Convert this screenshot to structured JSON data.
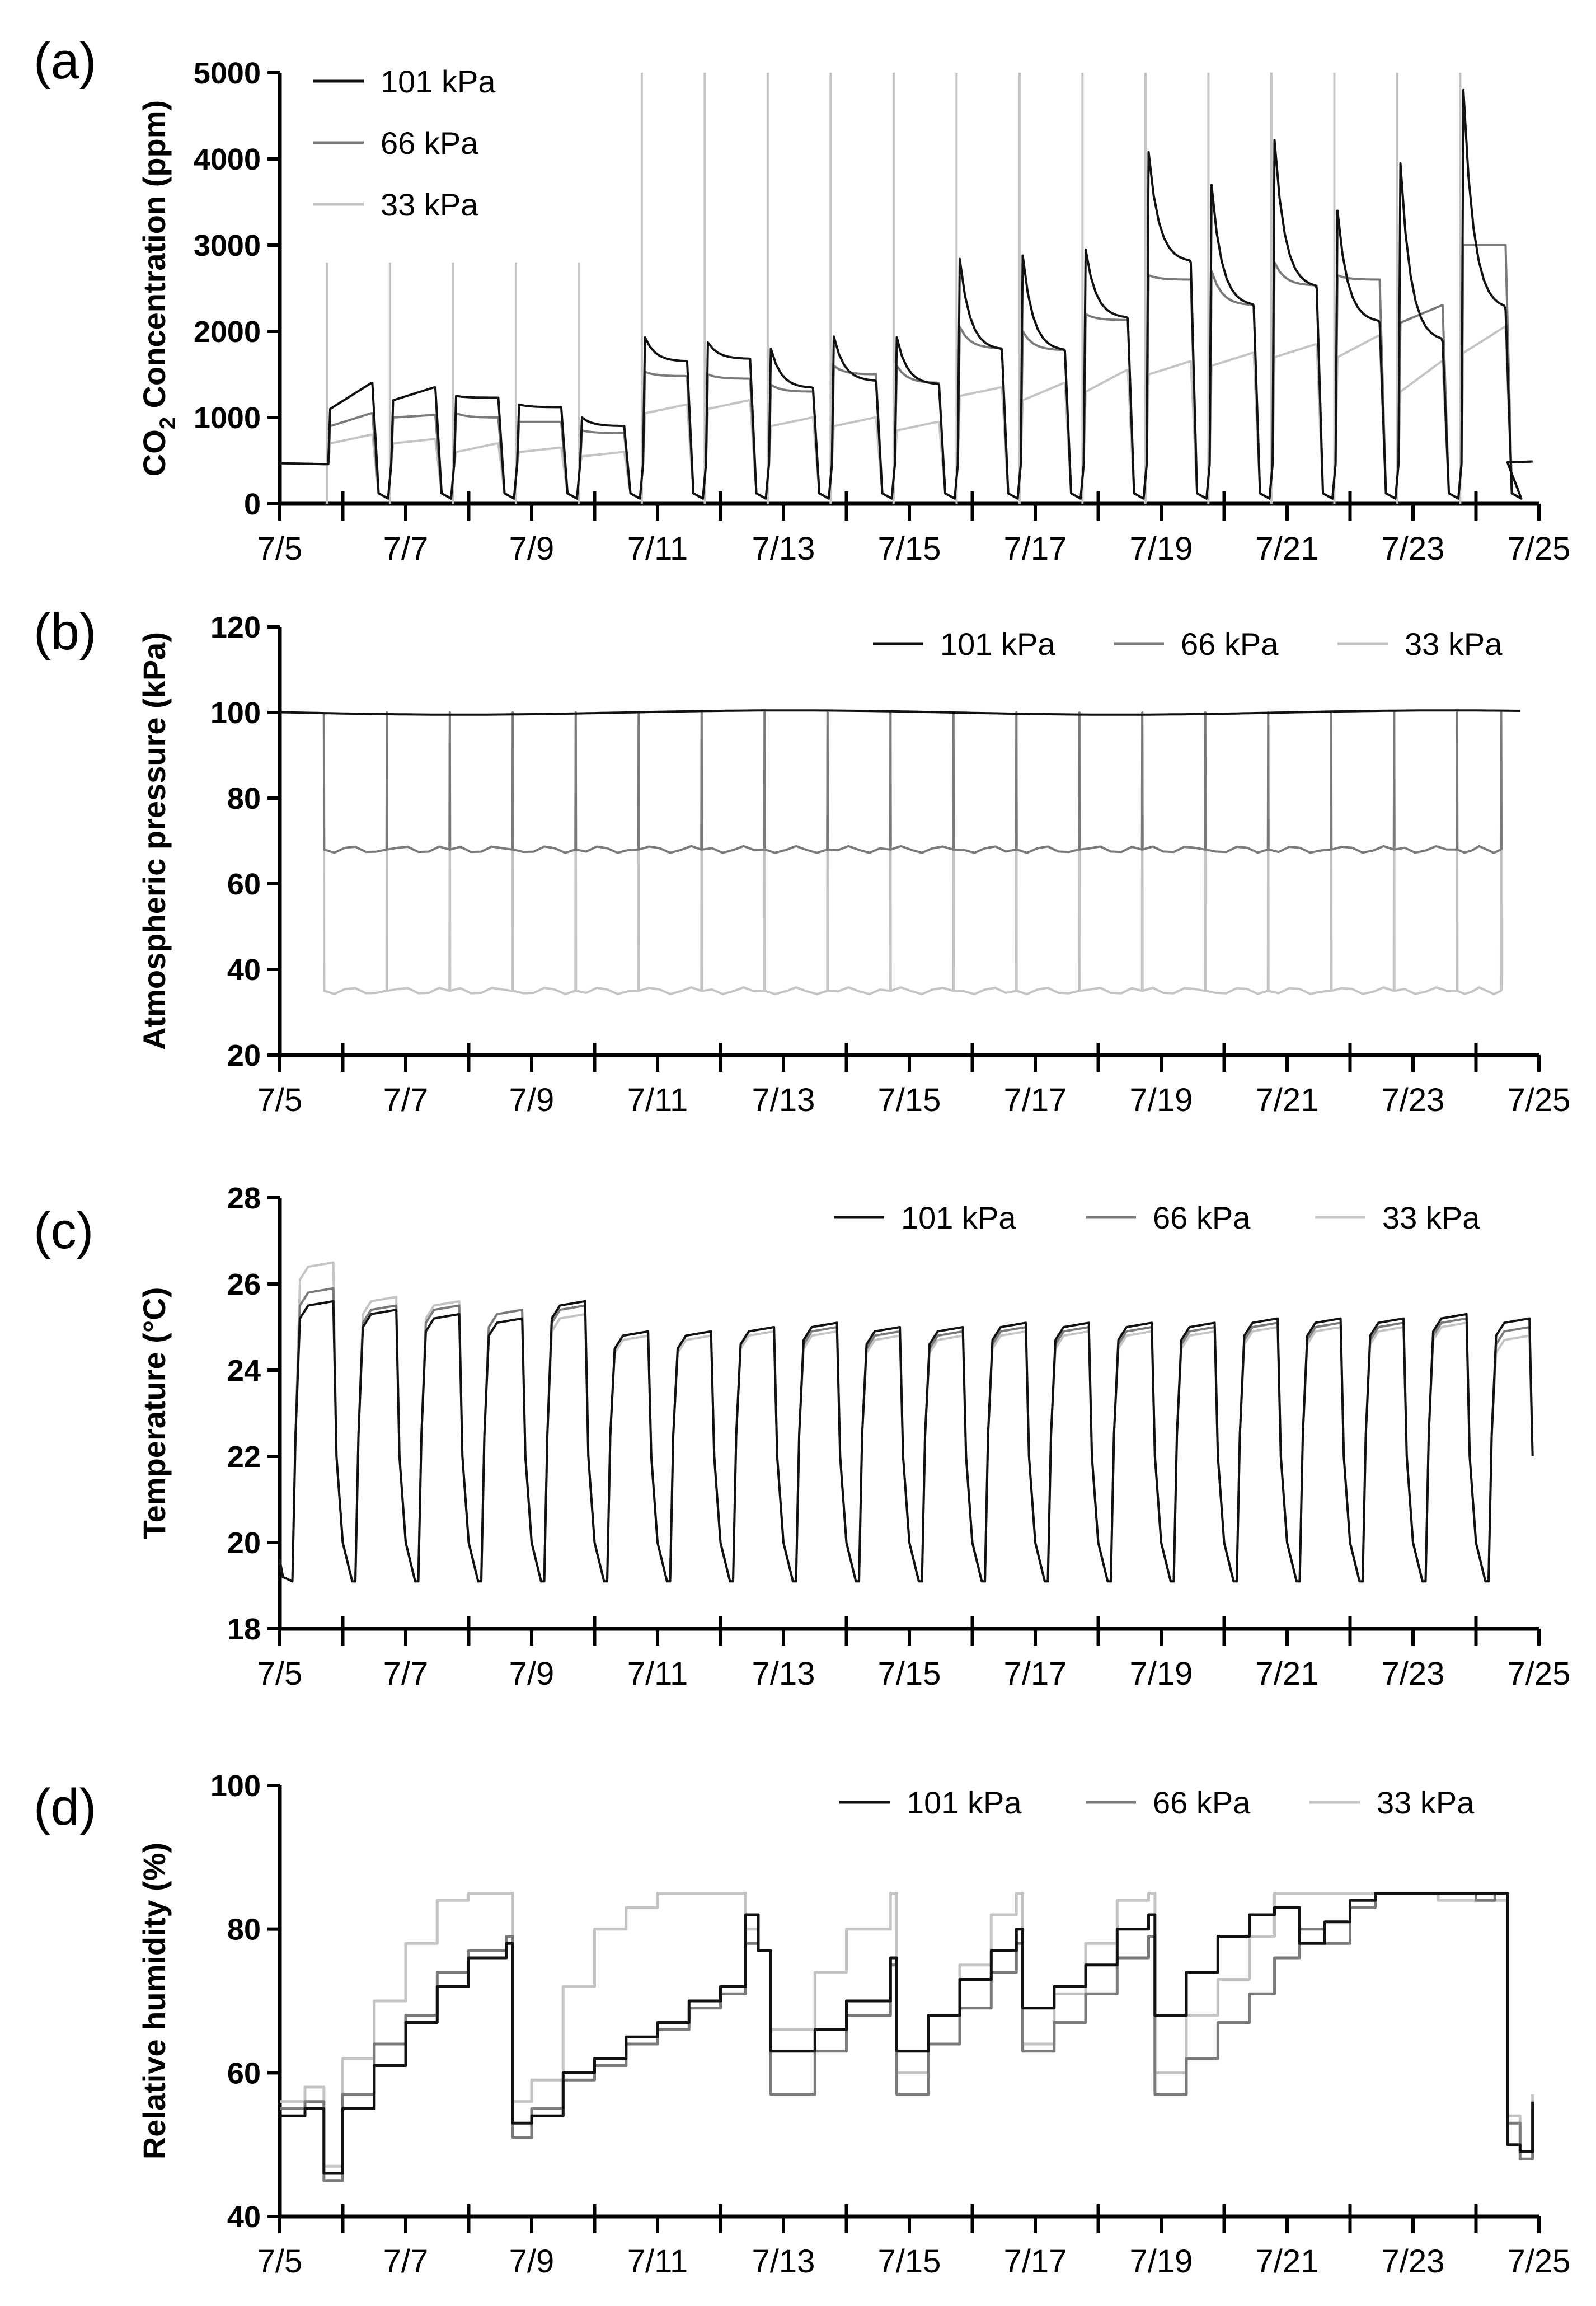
{
  "figure": {
    "x_tick_labels": [
      "7/5",
      "7/7",
      "7/9",
      "7/11",
      "7/13",
      "7/15",
      "7/17",
      "7/19",
      "7/21",
      "7/23",
      "7/25"
    ]
  },
  "series_colors": {
    "101 kPa": "#111111",
    "66 kPa": "#7a7a7a",
    "33 kPa": "#c4c4c4"
  },
  "chart_data": [
    {
      "type": "line",
      "panel_label": "(a)",
      "title": "",
      "xlabel": "",
      "ylabel": "CO2 Concentration (ppm)",
      "ylabel_main": "CO",
      "ylabel_sub": "2",
      "ylabel_rest": " Concentration (ppm)",
      "xlim": [
        5,
        25
      ],
      "ylim": [
        0,
        5000
      ],
      "yticks": [
        0,
        1000,
        2000,
        3000,
        4000,
        5000
      ],
      "x_tick_labels": [
        "7/5",
        "7/7",
        "7/9",
        "7/11",
        "7/13",
        "7/15",
        "7/17",
        "7/19",
        "7/21",
        "7/23",
        "7/25"
      ],
      "legend_position": "top-left",
      "legend": [
        "101 kPa",
        "66 kPa",
        "33 kPa"
      ],
      "spike_days": [
        5.75,
        6.75,
        7.75,
        8.75,
        9.75,
        10.75,
        11.75,
        12.75,
        13.75,
        14.75,
        15.75,
        16.75,
        17.75,
        18.75,
        19.75,
        20.75,
        21.75,
        22.75,
        23.75
      ],
      "spike_heights": [
        2800,
        2800,
        2800,
        2800,
        2800,
        5000,
        5000,
        5000,
        5000,
        5000,
        5000,
        5000,
        5000,
        5000,
        5000,
        5000,
        5000,
        5000,
        5000
      ],
      "series": [
        {
          "name": "101 kPa",
          "peak_values": [
            1100,
            1200,
            1250,
            1150,
            1000,
            1930,
            1870,
            1800,
            1940,
            1930,
            2840,
            2880,
            2950,
            4080,
            3700,
            4220,
            3400,
            3950,
            4800
          ],
          "day_end_values": [
            1400,
            1350,
            1230,
            1120,
            900,
            1650,
            1680,
            1340,
            1420,
            1380,
            1780,
            1770,
            2150,
            2800,
            2290,
            2500,
            2100,
            1880,
            2250
          ]
        },
        {
          "name": "66 kPa",
          "peak_values": [
            900,
            1000,
            1050,
            950,
            850,
            1530,
            1500,
            1380,
            1600,
            1600,
            2050,
            2000,
            2200,
            2650,
            2700,
            2800,
            2650,
            2100,
            3000
          ],
          "day_end_values": [
            1050,
            1030,
            1000,
            950,
            820,
            1480,
            1450,
            1300,
            1500,
            1400,
            1800,
            1780,
            2130,
            2600,
            2300,
            2530,
            2600,
            2300,
            3000
          ]
        },
        {
          "name": "33 kPa",
          "peak_values": [
            700,
            700,
            600,
            600,
            550,
            1050,
            1100,
            900,
            900,
            850,
            1250,
            1200,
            1300,
            1500,
            1600,
            1700,
            1700,
            1300,
            1750
          ],
          "day_end_values": [
            800,
            750,
            700,
            650,
            600,
            1150,
            1200,
            1000,
            1000,
            950,
            1350,
            1400,
            1550,
            1650,
            1750,
            1850,
            1950,
            1650,
            2050
          ]
        }
      ]
    },
    {
      "type": "line",
      "panel_label": "(b)",
      "title": "",
      "xlabel": "",
      "ylabel": "Atmospheric pressure  (kPa)",
      "xlim": [
        5,
        25
      ],
      "ylim": [
        20,
        120
      ],
      "yticks": [
        20,
        40,
        60,
        80,
        100,
        120
      ],
      "x_tick_labels": [
        "7/5",
        "7/7",
        "7/9",
        "7/11",
        "7/13",
        "7/15",
        "7/17",
        "7/19",
        "7/21",
        "7/23",
        "7/25"
      ],
      "legend_position": "top-right",
      "legend": [
        "101 kPa",
        "66 kPa",
        "33 kPa"
      ],
      "reset_days": [
        5.7,
        6.7,
        7.7,
        8.7,
        9.7,
        10.7,
        11.7,
        12.7,
        13.7,
        14.7,
        15.7,
        16.7,
        17.7,
        18.7,
        19.7,
        20.7,
        21.7,
        22.7,
        23.7,
        24.4
      ],
      "series": [
        {
          "name": "101 kPa",
          "level": 100,
          "xrange": [
            5,
            24.8
          ]
        },
        {
          "name": "66 kPa",
          "level": 68,
          "xrange": [
            5.7,
            24.4
          ]
        },
        {
          "name": "33 kPa",
          "level": 35,
          "xrange": [
            5.7,
            24.4
          ]
        }
      ]
    },
    {
      "type": "line",
      "panel_label": "(c)",
      "title": "",
      "xlabel": "",
      "ylabel": "Temperature (°C)",
      "xlim": [
        5,
        25
      ],
      "ylim": [
        18,
        28
      ],
      "yticks": [
        18,
        20,
        22,
        24,
        26,
        28
      ],
      "x_tick_labels": [
        "7/5",
        "7/7",
        "7/9",
        "7/11",
        "7/13",
        "7/15",
        "7/17",
        "7/19",
        "7/21",
        "7/23",
        "7/25"
      ],
      "legend_position": "top-right",
      "legend": [
        "101 kPa",
        "66 kPa",
        "33 kPa"
      ],
      "daily_cycle": {
        "light_on": 0.05,
        "light_off": 0.7,
        "min_temp": 19.1
      },
      "series": [
        {
          "name": "101 kPa",
          "daily_max": [
            25.6,
            25.4,
            25.3,
            25.2,
            25.6,
            24.9,
            24.9,
            25.0,
            25.1,
            25.0,
            25.0,
            25.1,
            25.1,
            25.1,
            25.1,
            25.2,
            25.2,
            25.2,
            25.3,
            25.2
          ]
        },
        {
          "name": "66 kPa",
          "daily_max": [
            25.9,
            25.5,
            25.5,
            25.4,
            25.5,
            24.9,
            24.9,
            25.0,
            25.0,
            24.9,
            24.9,
            25.0,
            25.0,
            25.0,
            25.0,
            25.1,
            25.1,
            25.1,
            25.2,
            25.0
          ]
        },
        {
          "name": "33 kPa",
          "daily_max": [
            26.5,
            25.7,
            25.6,
            25.4,
            25.3,
            24.8,
            24.8,
            24.9,
            24.9,
            24.8,
            24.8,
            24.9,
            24.9,
            24.9,
            24.9,
            25.0,
            25.0,
            25.0,
            25.1,
            24.8
          ]
        }
      ]
    },
    {
      "type": "line",
      "panel_label": "(d)",
      "title": "",
      "xlabel": "",
      "ylabel": "Relative humidity (%)",
      "xlim": [
        5,
        25
      ],
      "ylim": [
        40,
        100
      ],
      "yticks": [
        40,
        60,
        80,
        100
      ],
      "x_tick_labels": [
        "7/5",
        "7/7",
        "7/9",
        "7/11",
        "7/13",
        "7/15",
        "7/17",
        "7/19",
        "7/21",
        "7/23",
        "7/25"
      ],
      "legend_position": "top-right",
      "legend": [
        "101 kPa",
        "66 kPa",
        "33 kPa"
      ],
      "series": [
        {
          "name": "101 kPa",
          "x": [
            5.0,
            5.4,
            5.7,
            6.0,
            6.5,
            7.0,
            7.5,
            8.0,
            8.6,
            8.7,
            9.0,
            9.5,
            10.0,
            10.5,
            11.0,
            11.5,
            12.0,
            12.4,
            12.6,
            12.8,
            13.5,
            14.0,
            14.7,
            14.8,
            15.3,
            15.8,
            16.3,
            16.7,
            16.8,
            17.3,
            17.8,
            18.3,
            18.8,
            18.9,
            19.4,
            19.9,
            20.4,
            20.8,
            21.2,
            21.6,
            22.0,
            22.4,
            22.8,
            23.4,
            24.0,
            24.3,
            24.5,
            24.7,
            24.9
          ],
          "y": [
            54,
            55,
            46,
            55,
            61,
            67,
            72,
            76,
            78,
            53,
            54,
            60,
            62,
            65,
            67,
            70,
            72,
            82,
            77,
            63,
            66,
            70,
            76,
            63,
            68,
            73,
            77,
            80,
            69,
            72,
            75,
            80,
            82,
            68,
            74,
            79,
            82,
            83,
            78,
            81,
            84,
            85,
            85,
            85,
            85,
            85,
            50,
            49,
            56
          ]
        },
        {
          "name": "66 kPa",
          "x": [
            5.0,
            5.4,
            5.7,
            6.0,
            6.5,
            7.0,
            7.5,
            8.0,
            8.6,
            8.7,
            9.0,
            9.5,
            10.0,
            10.5,
            11.0,
            11.5,
            12.0,
            12.4,
            12.6,
            12.8,
            13.5,
            14.0,
            14.7,
            14.8,
            15.3,
            15.8,
            16.3,
            16.7,
            16.8,
            17.3,
            17.8,
            18.3,
            18.8,
            18.9,
            19.4,
            19.9,
            20.4,
            20.8,
            21.2,
            21.6,
            22.0,
            22.4,
            22.8,
            23.4,
            24.0,
            24.3,
            24.5,
            24.7,
            24.9
          ],
          "y": [
            55,
            56,
            45,
            57,
            64,
            68,
            74,
            77,
            79,
            51,
            55,
            59,
            61,
            64,
            66,
            69,
            71,
            78,
            77,
            57,
            63,
            68,
            75,
            57,
            64,
            69,
            74,
            78,
            63,
            67,
            71,
            76,
            79,
            57,
            62,
            67,
            71,
            76,
            80,
            78,
            83,
            85,
            85,
            85,
            84,
            85,
            53,
            48,
            55
          ]
        },
        {
          "name": "33 kPa",
          "x": [
            5.0,
            5.4,
            5.7,
            6.0,
            6.5,
            7.0,
            7.5,
            8.0,
            8.6,
            8.7,
            9.0,
            9.5,
            10.0,
            10.5,
            11.0,
            11.5,
            12.0,
            12.4,
            12.6,
            12.8,
            13.5,
            14.0,
            14.7,
            14.8,
            15.3,
            15.8,
            16.3,
            16.7,
            16.8,
            17.3,
            17.8,
            18.3,
            18.8,
            18.9,
            19.4,
            19.9,
            20.4,
            20.8,
            21.2,
            21.6,
            22.0,
            22.4,
            22.8,
            23.4,
            24.0,
            24.3,
            24.5,
            24.7,
            24.9
          ],
          "y": [
            56,
            58,
            47,
            62,
            70,
            78,
            84,
            85,
            85,
            56,
            59,
            72,
            80,
            83,
            85,
            85,
            85,
            80,
            77,
            66,
            74,
            80,
            85,
            60,
            68,
            75,
            82,
            85,
            64,
            71,
            78,
            84,
            85,
            60,
            68,
            73,
            79,
            85,
            85,
            85,
            85,
            85,
            85,
            84,
            85,
            84,
            54,
            49,
            57
          ]
        }
      ]
    }
  ]
}
